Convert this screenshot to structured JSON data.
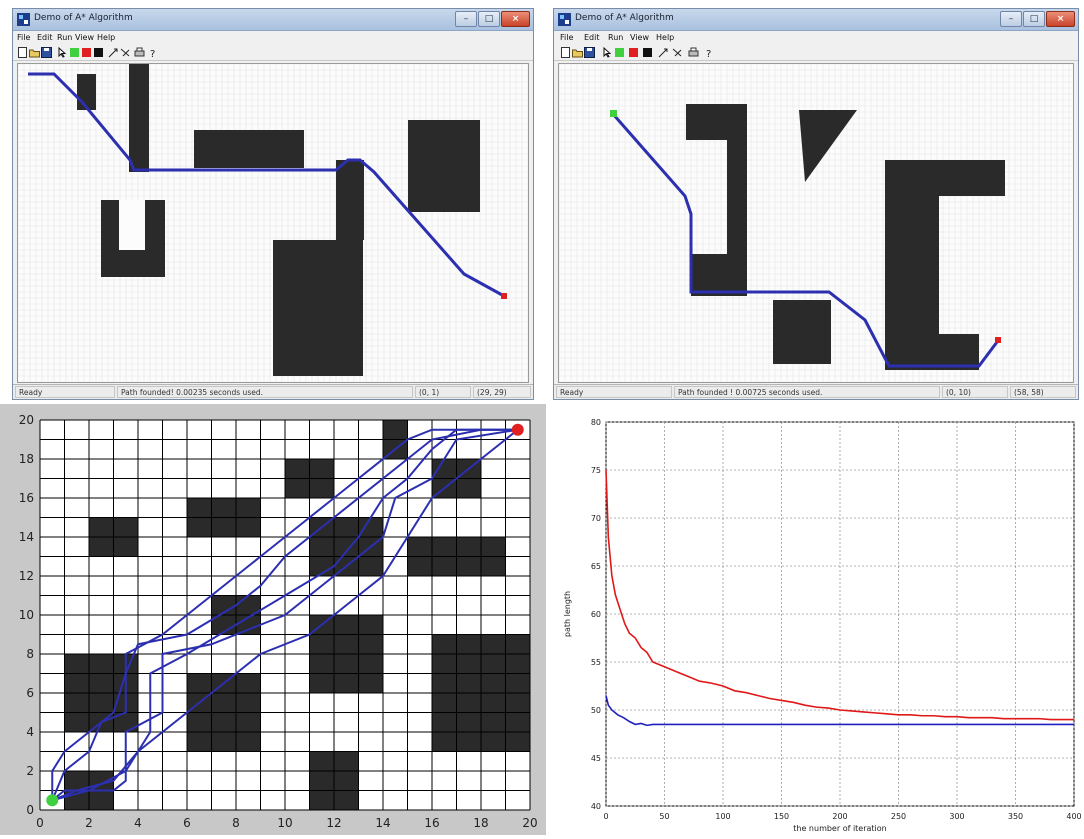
{
  "window_left": {
    "title": "Demo of A* Algorithm",
    "menu": [
      "File",
      "Edit",
      "Run",
      "View",
      "Help"
    ],
    "status": [
      "Ready",
      "Path founded! 0.00235 seconds used.",
      "(0, 1)",
      "(29, 29)"
    ]
  },
  "window_right": {
    "title": "Demo of A* Algorithm",
    "menu": [
      "File",
      "Edit",
      "Run",
      "View",
      "Help"
    ],
    "status": [
      "Ready",
      "Path founded ! 0.00725 seconds used.",
      "(0, 10)",
      "(58, 58)"
    ]
  },
  "icons": [
    "app-icon",
    "minimize-icon",
    "maximize-icon",
    "close-icon",
    "new-icon",
    "open-icon",
    "save-icon",
    "select-icon",
    "start-point-icon",
    "end-point-icon",
    "obstacle-icon",
    "run-icon",
    "clear-icon",
    "print-icon",
    "help-icon"
  ],
  "colors": {
    "path": "#2b2fb0",
    "obstacle": "#2a2a2a",
    "start": "#3fcf3f",
    "goal": "#e02020",
    "aco_curve": "#e01818",
    "best_curve": "#2020c0"
  },
  "chart_data": [
    {
      "type": "line",
      "title": "",
      "xlabel": "",
      "ylabel": "",
      "x_ticks": [
        "0",
        "2",
        "4",
        "6",
        "8",
        "10",
        "12",
        "14",
        "16",
        "18",
        "20"
      ],
      "y_ticks": [
        "0",
        "2",
        "4",
        "6",
        "8",
        "10",
        "12",
        "14",
        "16",
        "18",
        "20"
      ],
      "xlim": [
        0,
        20
      ],
      "ylim": [
        0,
        20
      ],
      "grid": true,
      "start": [
        0.5,
        0.5
      ],
      "goal": [
        19.5,
        19.5
      ],
      "obstacles": [
        [
          1,
          0,
          2,
          2
        ],
        [
          1,
          4,
          2,
          4
        ],
        [
          3,
          4,
          1,
          4
        ],
        [
          2,
          13,
          2,
          2
        ],
        [
          6,
          3,
          3,
          4
        ],
        [
          7,
          9,
          2,
          2
        ],
        [
          6,
          14,
          3,
          2
        ],
        [
          11,
          0,
          2,
          3
        ],
        [
          11,
          6,
          3,
          4
        ],
        [
          11,
          12,
          3,
          3
        ],
        [
          10,
          16,
          2,
          2
        ],
        [
          14,
          18,
          1,
          2
        ],
        [
          15,
          12,
          4,
          2
        ],
        [
          16,
          16,
          2,
          2
        ],
        [
          16,
          3,
          4,
          6
        ]
      ],
      "paths": [
        [
          [
            0.5,
            0.5
          ],
          [
            1,
            1
          ],
          [
            3,
            1
          ],
          [
            3.5,
            1.5
          ],
          [
            3.5,
            4
          ],
          [
            5,
            5
          ],
          [
            5,
            8
          ],
          [
            7,
            8.5
          ],
          [
            9,
            9.5
          ],
          [
            10,
            10
          ],
          [
            11,
            11
          ],
          [
            12,
            12
          ],
          [
            13,
            13
          ],
          [
            14,
            14
          ],
          [
            14.5,
            16
          ],
          [
            16,
            17
          ],
          [
            17,
            19
          ],
          [
            19.5,
            19.5
          ]
        ],
        [
          [
            0.5,
            0.5
          ],
          [
            1.5,
            1
          ],
          [
            3,
            1.5
          ],
          [
            4,
            3
          ],
          [
            4.5,
            4
          ],
          [
            4.5,
            7
          ],
          [
            6,
            8
          ],
          [
            8,
            9.5
          ],
          [
            10,
            11
          ],
          [
            12,
            12.5
          ],
          [
            13,
            14
          ],
          [
            14,
            16
          ],
          [
            15,
            17
          ],
          [
            16,
            18.5
          ],
          [
            17,
            19.5
          ],
          [
            19.5,
            19.5
          ]
        ],
        [
          [
            0.5,
            0.5
          ],
          [
            0.5,
            2
          ],
          [
            1,
            3
          ],
          [
            2,
            4
          ],
          [
            3,
            5
          ],
          [
            3.5,
            7
          ],
          [
            4,
            8.5
          ],
          [
            6,
            9
          ],
          [
            8,
            10.5
          ],
          [
            9,
            11.5
          ],
          [
            10,
            13
          ],
          [
            11,
            14
          ],
          [
            12,
            15
          ],
          [
            13,
            16
          ],
          [
            14,
            17
          ],
          [
            15,
            18
          ],
          [
            16,
            19
          ],
          [
            18,
            19.5
          ],
          [
            19.5,
            19.5
          ]
        ],
        [
          [
            0.5,
            0.5
          ],
          [
            2,
            1
          ],
          [
            3.5,
            2
          ],
          [
            4,
            3
          ],
          [
            5,
            4
          ],
          [
            6,
            5
          ],
          [
            7,
            6
          ],
          [
            8,
            7
          ],
          [
            9,
            8
          ],
          [
            10,
            8.5
          ],
          [
            11,
            9
          ],
          [
            12,
            10
          ],
          [
            13,
            11
          ],
          [
            14,
            12
          ],
          [
            15,
            14
          ],
          [
            16,
            16
          ],
          [
            17,
            17
          ],
          [
            18,
            18
          ],
          [
            19,
            19
          ],
          [
            19.5,
            19.5
          ]
        ],
        [
          [
            0.5,
            0.5
          ],
          [
            1,
            2
          ],
          [
            2,
            3
          ],
          [
            2.5,
            4.5
          ],
          [
            3.5,
            5
          ],
          [
            3.5,
            8
          ],
          [
            5,
            9
          ],
          [
            6,
            10
          ],
          [
            7,
            11
          ],
          [
            8,
            12
          ],
          [
            9,
            13
          ],
          [
            10,
            14
          ],
          [
            11,
            15
          ],
          [
            12,
            16
          ],
          [
            13,
            17
          ],
          [
            14,
            18
          ],
          [
            15,
            19
          ],
          [
            16,
            19.5
          ],
          [
            19.5,
            19.5
          ]
        ]
      ]
    },
    {
      "type": "line",
      "title": "",
      "xlabel": "the number of iteration",
      "ylabel": "path length",
      "x_ticks": [
        "0",
        "50",
        "100",
        "150",
        "200",
        "250",
        "300",
        "350",
        "400"
      ],
      "y_ticks": [
        "40",
        "45",
        "50",
        "55",
        "60",
        "65",
        "70",
        "75",
        "80"
      ],
      "xlim": [
        0,
        400
      ],
      "ylim": [
        40,
        80
      ],
      "grid": true,
      "series": [
        {
          "x": [
            0,
            2,
            5,
            8,
            12,
            16,
            20,
            25,
            30,
            35,
            40,
            50,
            60,
            70,
            80,
            90,
            100,
            110,
            120,
            130,
            140,
            150,
            160,
            170,
            180,
            190,
            200,
            210,
            220,
            230,
            240,
            250,
            260,
            270,
            280,
            290,
            300,
            310,
            320,
            330,
            340,
            350,
            360,
            370,
            380,
            390,
            400
          ],
          "values": [
            75,
            68,
            64,
            62,
            60.5,
            59,
            58,
            57.5,
            56.5,
            56,
            55,
            54.5,
            54,
            53.5,
            53,
            52.8,
            52.5,
            52,
            51.8,
            51.5,
            51.2,
            51,
            50.8,
            50.5,
            50.3,
            50.2,
            50,
            49.9,
            49.8,
            49.7,
            49.6,
            49.5,
            49.5,
            49.4,
            49.4,
            49.3,
            49.3,
            49.2,
            49.2,
            49.2,
            49.1,
            49.1,
            49.1,
            49.1,
            49.0,
            49.0,
            49.0
          ]
        },
        {
          "x": [
            0,
            2,
            5,
            10,
            15,
            20,
            25,
            30,
            35,
            40,
            50,
            100,
            200,
            300,
            400
          ],
          "values": [
            51.5,
            50.5,
            50,
            49.5,
            49.2,
            48.8,
            48.5,
            48.6,
            48.4,
            48.5,
            48.5,
            48.5,
            48.5,
            48.5,
            48.5
          ]
        }
      ]
    }
  ]
}
